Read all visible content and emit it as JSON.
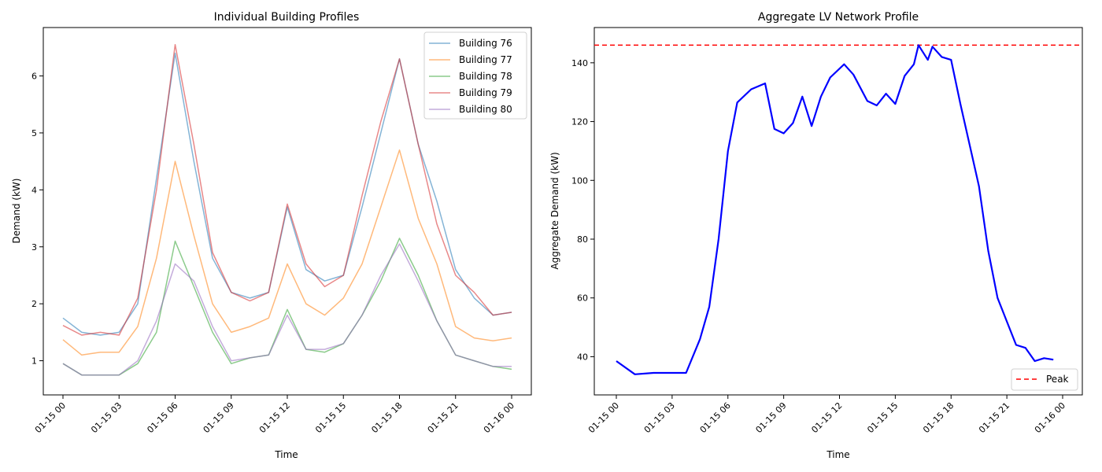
{
  "chart_data": [
    {
      "type": "line",
      "title": "Individual Building Profiles",
      "xlabel": "Time",
      "ylabel": "Demand (kW)",
      "xlim": [
        "01-15 00",
        "01-16 00"
      ],
      "ylim": [
        0.4,
        6.85
      ],
      "xticks": [
        "01-15 00",
        "01-15 03",
        "01-15 06",
        "01-15 09",
        "01-15 12",
        "01-15 15",
        "01-15 18",
        "01-15 21",
        "01-16 00"
      ],
      "yticks": [
        1,
        2,
        3,
        4,
        5,
        6
      ],
      "legend_position": "top-right",
      "grid": false,
      "x_points": [
        "01-15 00",
        "01-15 01",
        "01-15 02",
        "01-15 03",
        "01-15 04",
        "01-15 05",
        "01-15 06",
        "01-15 07",
        "01-15 08",
        "01-15 09",
        "01-15 10",
        "01-15 11",
        "01-15 12",
        "01-15 13",
        "01-15 14",
        "01-15 15",
        "01-15 16",
        "01-15 17",
        "01-15 18",
        "01-15 19",
        "01-15 20",
        "01-15 21",
        "01-15 22",
        "01-15 23",
        "01-16 00"
      ],
      "series": [
        {
          "name": "Building 76",
          "color": "#1f77b4",
          "values": [
            1.75,
            1.5,
            1.45,
            1.5,
            2.0,
            4.2,
            6.4,
            4.5,
            2.8,
            2.2,
            2.1,
            2.2,
            3.7,
            2.6,
            2.4,
            2.5,
            3.7,
            5.0,
            6.3,
            4.8,
            3.8,
            2.6,
            2.1,
            1.8,
            1.85
          ]
        },
        {
          "name": "Building 77",
          "color": "#ff7f0e",
          "values": [
            1.37,
            1.1,
            1.15,
            1.15,
            1.6,
            2.8,
            4.5,
            3.2,
            2.0,
            1.5,
            1.6,
            1.75,
            2.7,
            2.0,
            1.8,
            2.1,
            2.7,
            3.7,
            4.7,
            3.5,
            2.7,
            1.6,
            1.4,
            1.35,
            1.4
          ]
        },
        {
          "name": "Building 78",
          "color": "#2ca02c",
          "values": [
            0.95,
            0.75,
            0.75,
            0.75,
            0.95,
            1.5,
            3.1,
            2.3,
            1.5,
            0.95,
            1.05,
            1.1,
            1.9,
            1.2,
            1.15,
            1.3,
            1.8,
            2.4,
            3.15,
            2.5,
            1.7,
            1.1,
            1.0,
            0.9,
            0.85
          ]
        },
        {
          "name": "Building 79",
          "color": "#d62728",
          "values": [
            1.62,
            1.45,
            1.5,
            1.45,
            2.1,
            4.0,
            6.55,
            4.8,
            2.9,
            2.2,
            2.05,
            2.2,
            3.75,
            2.7,
            2.3,
            2.5,
            3.9,
            5.2,
            6.3,
            4.8,
            3.4,
            2.5,
            2.2,
            1.8,
            1.85
          ]
        },
        {
          "name": "Building 80",
          "color": "#9467bd",
          "values": [
            0.95,
            0.75,
            0.75,
            0.75,
            1.0,
            1.7,
            2.7,
            2.4,
            1.6,
            1.0,
            1.05,
            1.1,
            1.8,
            1.2,
            1.2,
            1.3,
            1.8,
            2.5,
            3.05,
            2.4,
            1.7,
            1.1,
            1.0,
            0.9,
            0.9
          ]
        }
      ]
    },
    {
      "type": "line",
      "title": "Aggregate LV Network Profile",
      "xlabel": "Time",
      "ylabel": "Aggregate Demand (kW)",
      "xlim": [
        "01-15 00",
        "01-16 00"
      ],
      "ylim": [
        27,
        152
      ],
      "xticks": [
        "01-15 00",
        "01-15 03",
        "01-15 06",
        "01-15 09",
        "01-15 12",
        "01-15 15",
        "01-15 18",
        "01-15 21",
        "01-16 00"
      ],
      "yticks": [
        40,
        60,
        80,
        100,
        120,
        140
      ],
      "legend_position": "bottom-right",
      "grid": false,
      "peak": {
        "label": "Peak",
        "value": 146,
        "color": "#ff0000"
      },
      "series": [
        {
          "name": "",
          "color": "#0000ff",
          "x": [
            "01-15 00:00",
            "01-15 01:00",
            "01-15 02:00",
            "01-15 03:00",
            "01-15 03:45",
            "01-15 04:30",
            "01-15 05:00",
            "01-15 05:30",
            "01-15 06:00",
            "01-15 06:30",
            "01-15 07:15",
            "01-15 08:00",
            "01-15 08:30",
            "01-15 09:00",
            "01-15 09:30",
            "01-15 10:00",
            "01-15 10:30",
            "01-15 11:00",
            "01-15 11:30",
            "01-15 12:15",
            "01-15 12:45",
            "01-15 13:30",
            "01-15 14:00",
            "01-15 14:30",
            "01-15 15:00",
            "01-15 15:30",
            "01-15 16:00",
            "01-15 16:15",
            "01-15 16:45",
            "01-15 17:00",
            "01-15 17:30",
            "01-15 18:00",
            "01-15 18:30",
            "01-15 19:00",
            "01-15 19:30",
            "01-15 20:00",
            "01-15 20:30",
            "01-15 21:00",
            "01-15 21:30",
            "01-15 22:00",
            "01-15 22:30",
            "01-15 23:00",
            "01-15 23:30"
          ],
          "values": [
            38.5,
            34,
            34.5,
            34.5,
            34.5,
            46,
            57,
            80,
            110,
            126.5,
            131,
            133,
            117.5,
            116,
            119.5,
            128.5,
            118.5,
            128.5,
            135,
            139.5,
            136,
            127,
            125.5,
            129.5,
            126,
            135.5,
            139.5,
            146,
            141,
            145.5,
            142,
            141,
            126,
            112,
            98,
            76,
            60,
            52,
            44,
            43,
            38.5,
            39.5,
            39
          ]
        }
      ]
    }
  ]
}
